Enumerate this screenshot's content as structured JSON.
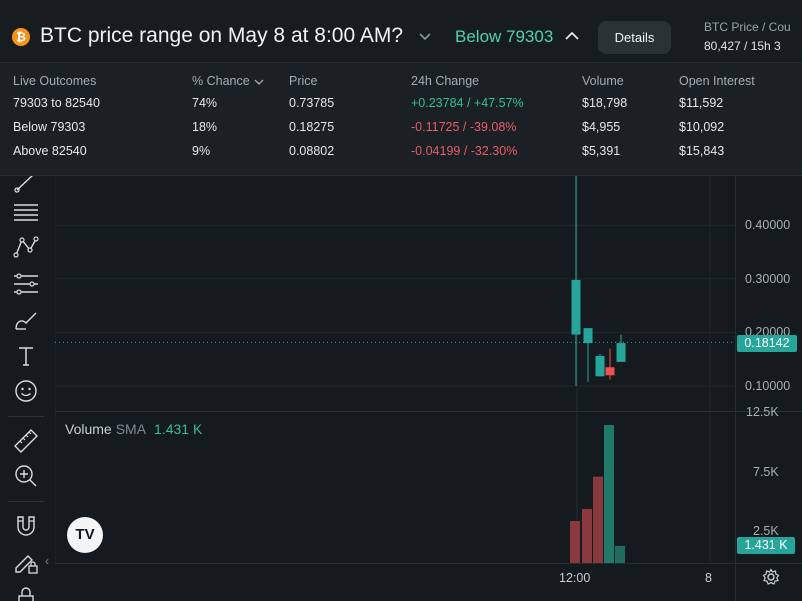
{
  "header": {
    "title": "BTC price range on May 8 at 8:00 AM?",
    "coin_icon": "bitcoin-icon",
    "selected_outcome": "Below 79303",
    "details_label": "Details",
    "btc_price_label": "BTC Price / Cou",
    "btc_price_value": "80,427 / 15h 3"
  },
  "outcomes_panel": {
    "columns": [
      "Live Outcomes",
      "% Chance",
      "Price",
      "24h Change",
      "Volume",
      "Open Interest"
    ],
    "rows": [
      {
        "outcome": "79303 to 82540",
        "chance": "74%",
        "price": "0.73785",
        "change": "+0.23784 / +47.57%",
        "direction": "up",
        "volume": "$18,798",
        "open_interest": "$11,592"
      },
      {
        "outcome": "Below 79303",
        "chance": "18%",
        "price": "0.18275",
        "change": "-0.11725 / -39.08%",
        "direction": "down",
        "volume": "$4,955",
        "open_interest": "$10,092"
      },
      {
        "outcome": "Above 82540",
        "chance": "9%",
        "price": "0.08802",
        "change": "-0.04199 / -32.30%",
        "direction": "down",
        "volume": "$5,391",
        "open_interest": "$15,843"
      }
    ]
  },
  "toolbar": {
    "tools": [
      "line-tool-icon",
      "horizontal-lines-icon",
      "pattern-tool-icon",
      "fib-tool-icon",
      "brush-icon",
      "text-tool-icon",
      "emoji-icon",
      "ruler-icon",
      "zoom-in-icon",
      "magnet-icon",
      "lock-drawing-icon",
      "lock-icon"
    ],
    "collapse_icon": "‹"
  },
  "chart": {
    "price_axis_labels": [
      "0.40000",
      "0.30000",
      "0.20000",
      "0.10000"
    ],
    "current_price": "0.18142",
    "volume_axis_labels": [
      "12.5K",
      "7.5K",
      "2.5K"
    ],
    "current_volume": "1.431 K",
    "volume_legend": {
      "name": "Volume",
      "indicator": "SMA",
      "value": "1.431 K"
    },
    "time_labels": [
      "12:00",
      "8"
    ],
    "logo_text": "TV",
    "colors": {
      "up": "#26a69a",
      "down": "#ef5350",
      "background": "#141a1d"
    }
  },
  "chart_data": [
    {
      "type": "candlestick",
      "ylim": [
        0.06,
        0.5
      ],
      "candles": [
        {
          "open": 0.196,
          "close": 0.298,
          "high": 0.53,
          "low": 0.1
        },
        {
          "open": 0.18,
          "close": 0.208,
          "high": 0.208,
          "low": 0.108
        },
        {
          "open": 0.118,
          "close": 0.156,
          "high": 0.16,
          "low": 0.118
        },
        {
          "open": 0.135,
          "close": 0.12,
          "high": 0.17,
          "low": 0.112
        },
        {
          "open": 0.145,
          "close": 0.18,
          "high": 0.196,
          "low": 0.145
        }
      ]
    },
    {
      "type": "bar",
      "ylim": [
        0,
        13000
      ],
      "values": [
        3500,
        4500,
        7200,
        11500,
        1431
      ],
      "directions": [
        "down",
        "down",
        "down",
        "up",
        "up"
      ]
    }
  ]
}
